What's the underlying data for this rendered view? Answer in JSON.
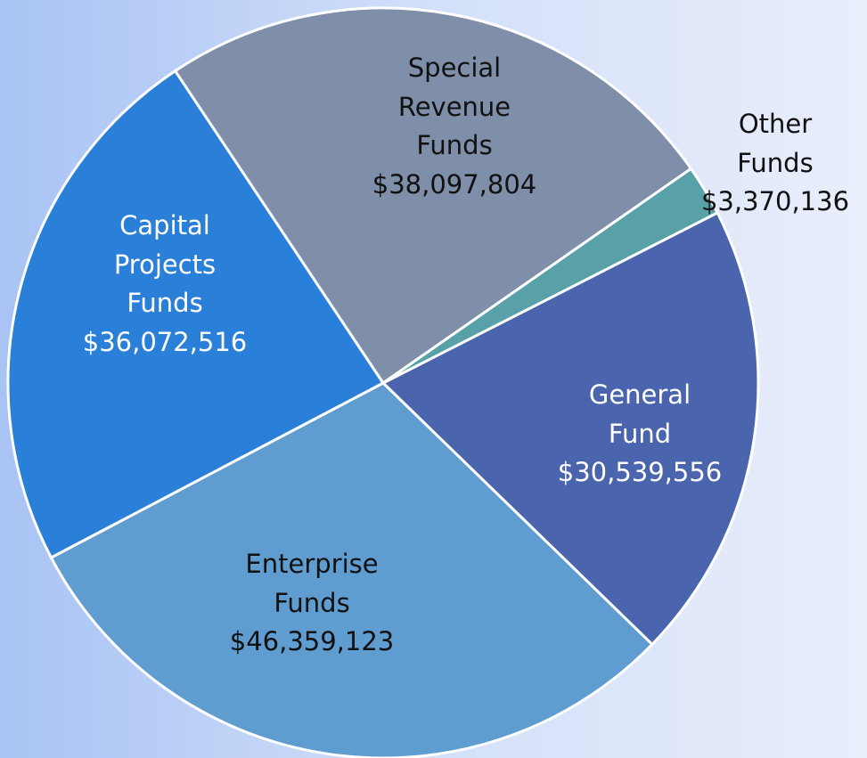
{
  "chart_data": {
    "type": "pie",
    "categories": [
      "General Fund",
      "Enterprise Funds",
      "Capital Projects Funds",
      "Special Revenue Funds",
      "Other Funds"
    ],
    "values": [
      30539556,
      46359123,
      36072516,
      38097804,
      3370136
    ],
    "value_labels": [
      "$30,539,556",
      "$46,359,123",
      "$36,072,516",
      "$38,097,804",
      "$3,370,136"
    ],
    "colors": [
      "#4a64ad",
      "#5f9cd0",
      "#2a7fd8",
      "#7f8fa9",
      "#58a1a9"
    ],
    "label_colors": [
      "#ffffff",
      "#111111",
      "#ffffff",
      "#111111",
      "#111111"
    ]
  }
}
